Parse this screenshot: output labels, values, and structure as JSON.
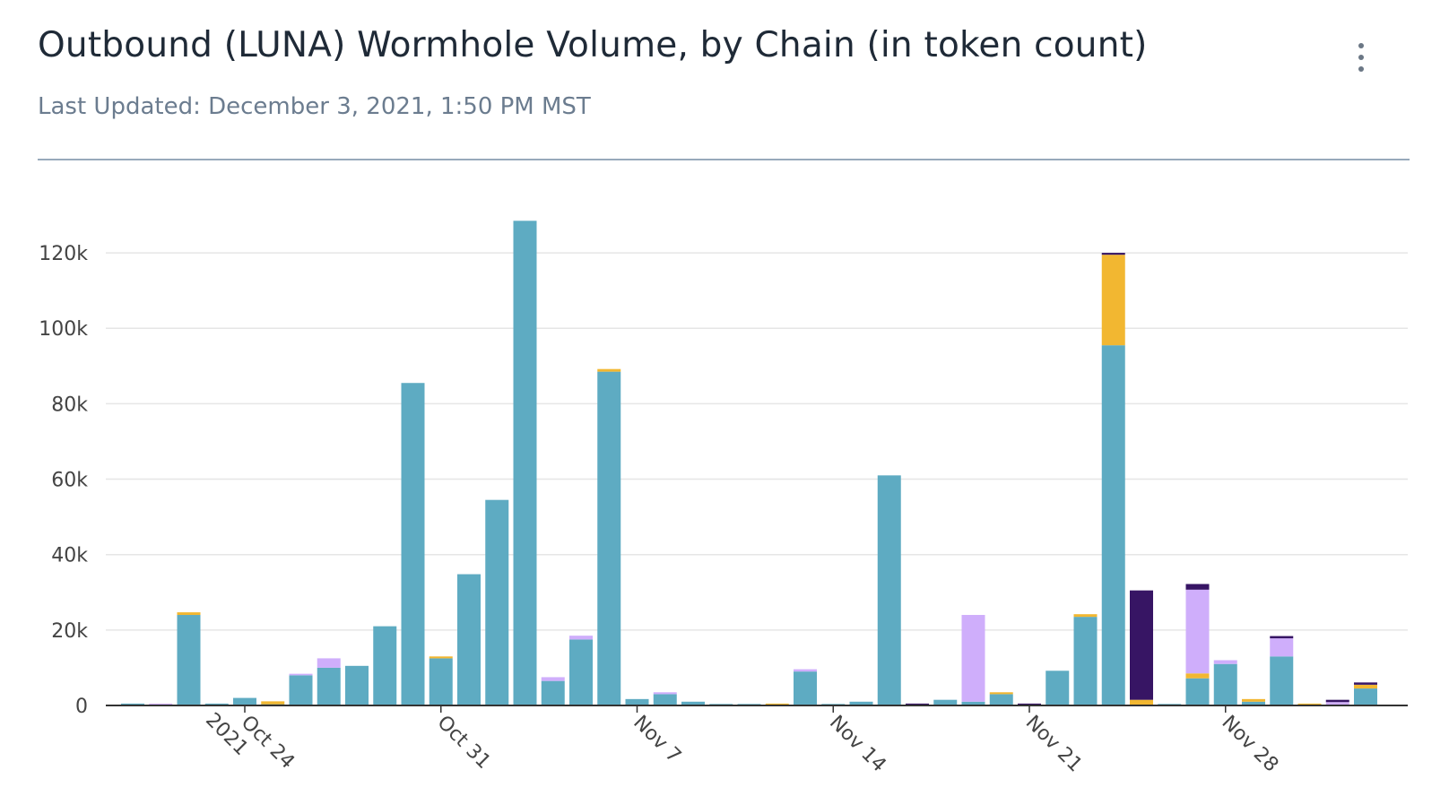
{
  "header": {
    "title": "Outbound (LUNA) Wormhole Volume, by Chain (in token count)",
    "last_updated": "Last Updated: December 3, 2021, 1:50 PM MST",
    "menu_icon": "more-vertical-icon"
  },
  "chart_data": {
    "type": "bar",
    "stacked": true,
    "title": "Outbound (LUNA) Wormhole Volume, by Chain (in token count)",
    "xlabel": "",
    "ylabel": "",
    "ylim": [
      0,
      130000
    ],
    "grid": true,
    "legend": "none",
    "x_ticks": [
      {
        "date": "2021-10-24",
        "label": "Oct 24",
        "sublabel": "2021"
      },
      {
        "date": "2021-10-31",
        "label": "Oct 31",
        "sublabel": ""
      },
      {
        "date": "2021-11-07",
        "label": "Nov 7",
        "sublabel": ""
      },
      {
        "date": "2021-11-14",
        "label": "Nov 14",
        "sublabel": ""
      },
      {
        "date": "2021-11-21",
        "label": "Nov 21",
        "sublabel": ""
      },
      {
        "date": "2021-11-28",
        "label": "Nov 28",
        "sublabel": ""
      }
    ],
    "y_ticks": [
      {
        "value": 0,
        "label": "0"
      },
      {
        "value": 20000,
        "label": "20k"
      },
      {
        "value": 40000,
        "label": "40k"
      },
      {
        "value": 60000,
        "label": "60k"
      },
      {
        "value": 80000,
        "label": "80k"
      },
      {
        "value": 100000,
        "label": "100k"
      },
      {
        "value": 120000,
        "label": "120k"
      }
    ],
    "categories": [
      "2021-10-20",
      "2021-10-21",
      "2021-10-22",
      "2021-10-23",
      "2021-10-24",
      "2021-10-25",
      "2021-10-26",
      "2021-10-27",
      "2021-10-28",
      "2021-10-29",
      "2021-10-30",
      "2021-10-31",
      "2021-11-01",
      "2021-11-02",
      "2021-11-03",
      "2021-11-04",
      "2021-11-05",
      "2021-11-06",
      "2021-11-07",
      "2021-11-08",
      "2021-11-09",
      "2021-11-10",
      "2021-11-11",
      "2021-11-12",
      "2021-11-13",
      "2021-11-14",
      "2021-11-15",
      "2021-11-16",
      "2021-11-17",
      "2021-11-18",
      "2021-11-19",
      "2021-11-20",
      "2021-11-21",
      "2021-11-22",
      "2021-11-23",
      "2021-11-24",
      "2021-11-25",
      "2021-11-26",
      "2021-11-27",
      "2021-11-28",
      "2021-11-29",
      "2021-11-30",
      "2021-12-01",
      "2021-12-02",
      "2021-12-03"
    ],
    "series": [
      {
        "color": "#5eabc2",
        "values": [
          500,
          0,
          24000,
          500,
          2000,
          300,
          8000,
          10000,
          10500,
          21000,
          85500,
          12500,
          34800,
          54500,
          128500,
          6500,
          17500,
          88500,
          1700,
          3000,
          1000,
          400,
          400,
          0,
          9000,
          400,
          1000,
          61000,
          0,
          1500,
          1000,
          3000,
          0,
          9200,
          23500,
          95500,
          0,
          400,
          7200,
          11000,
          1000,
          13000,
          0,
          0,
          4500
        ]
      },
      {
        "color": "#f2b731",
        "values": [
          0,
          0,
          700,
          0,
          0,
          800,
          0,
          0,
          0,
          0,
          0,
          500,
          0,
          0,
          0,
          0,
          0,
          700,
          0,
          0,
          0,
          0,
          0,
          500,
          0,
          0,
          0,
          0,
          0,
          0,
          0,
          500,
          0,
          0,
          700,
          24000,
          1500,
          0,
          1300,
          0,
          700,
          0,
          500,
          0,
          1000
        ]
      },
      {
        "color": "#cfaefb",
        "values": [
          0,
          500,
          0,
          0,
          0,
          0,
          400,
          2500,
          0,
          0,
          0,
          0,
          0,
          0,
          0,
          1000,
          1000,
          0,
          0,
          500,
          0,
          0,
          0,
          0,
          600,
          0,
          0,
          0,
          0,
          0,
          23000,
          0,
          0,
          0,
          0,
          0,
          0,
          0,
          22200,
          1000,
          0,
          4800,
          0,
          900,
          0
        ]
      },
      {
        "color": "#371564",
        "values": [
          0,
          0,
          0,
          0,
          0,
          0,
          0,
          0,
          0,
          0,
          0,
          0,
          0,
          0,
          0,
          0,
          0,
          0,
          0,
          0,
          0,
          0,
          0,
          0,
          0,
          0,
          0,
          0,
          500,
          0,
          0,
          0,
          500,
          0,
          0,
          500,
          29000,
          0,
          1500,
          0,
          0,
          600,
          0,
          600,
          600
        ]
      }
    ]
  }
}
